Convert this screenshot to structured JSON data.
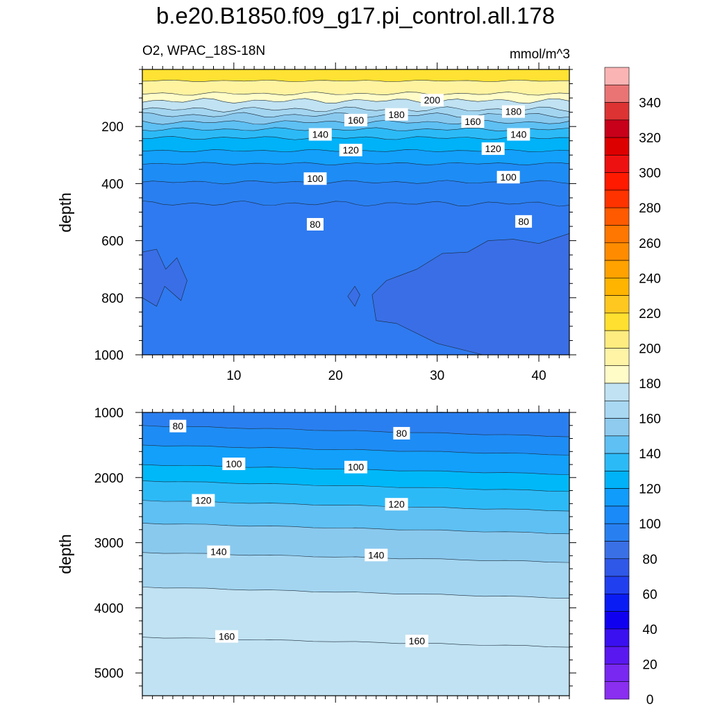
{
  "title": "b.e20.B1850.f09_g17.pi_control.all.178",
  "subtitle": "O2, WPAC_18S-18N",
  "units": "mmol/m^3",
  "chart_data": [
    {
      "type": "heatmap",
      "panel": "upper",
      "variable": "O2",
      "region": "WPAC_18S-18N",
      "ylabel": "depth",
      "xlabel": "",
      "xlim": [
        1,
        43
      ],
      "ylim": [
        1000,
        0
      ],
      "x_ticks": [
        10,
        20,
        30,
        40
      ],
      "y_ticks": [
        200,
        400,
        600,
        800,
        1000
      ],
      "contour_levels": [
        200,
        180,
        160,
        140,
        120,
        100,
        80,
        60
      ],
      "contour_depths": {
        "200": 40,
        "180": 110,
        "160": 150,
        "140": 190,
        "120": 240,
        "100": 330,
        "80": 470
      },
      "contour_labels": [
        {
          "value": 200,
          "x": 29.5,
          "depth": 110
        },
        {
          "value": 180,
          "x": 26,
          "depth": 160
        },
        {
          "value": 180,
          "x": 37.5,
          "depth": 150
        },
        {
          "value": 160,
          "x": 22,
          "depth": 180
        },
        {
          "value": 160,
          "x": 33.5,
          "depth": 185
        },
        {
          "value": 140,
          "x": 18.5,
          "depth": 230
        },
        {
          "value": 140,
          "x": 38,
          "depth": 230
        },
        {
          "value": 120,
          "x": 21.5,
          "depth": 285
        },
        {
          "value": 120,
          "x": 35.5,
          "depth": 280
        },
        {
          "value": 100,
          "x": 18,
          "depth": 385
        },
        {
          "value": 100,
          "x": 37,
          "depth": 380
        },
        {
          "value": 80,
          "x": 18,
          "depth": 545
        },
        {
          "value": 80,
          "x": 38.5,
          "depth": 535
        }
      ]
    },
    {
      "type": "heatmap",
      "panel": "lower",
      "variable": "O2",
      "region": "WPAC_18S-18N",
      "ylabel": "depth",
      "xlabel": "",
      "xlim": [
        1,
        43
      ],
      "ylim": [
        5350,
        1000
      ],
      "x_ticks": [
        10,
        20,
        30,
        40
      ],
      "y_ticks": [
        1000,
        2000,
        3000,
        4000,
        5000
      ],
      "contour_labels": [
        {
          "value": 80,
          "x": 4.5,
          "depth": 1220
        },
        {
          "value": 80,
          "x": 26.5,
          "depth": 1330
        },
        {
          "value": 100,
          "x": 10,
          "depth": 1800
        },
        {
          "value": 100,
          "x": 22,
          "depth": 1850
        },
        {
          "value": 120,
          "x": 7,
          "depth": 2360
        },
        {
          "value": 120,
          "x": 26,
          "depth": 2420
        },
        {
          "value": 140,
          "x": 8.5,
          "depth": 3150
        },
        {
          "value": 140,
          "x": 24,
          "depth": 3200
        },
        {
          "value": 160,
          "x": 9.3,
          "depth": 4450
        },
        {
          "value": 160,
          "x": 28,
          "depth": 4520
        }
      ]
    }
  ],
  "colorbar": {
    "labels": [
      "340",
      "320",
      "300",
      "280",
      "260",
      "240",
      "220",
      "200",
      "180",
      "160",
      "140",
      "120",
      "100",
      "80",
      "60",
      "40",
      "20",
      "0"
    ],
    "colors": [
      "#fbb4b4",
      "#ea7474",
      "#dd3333",
      "#c8001a",
      "#dd0000",
      "#ee1111",
      "#ff1a00",
      "#ff3300",
      "#ff5a00",
      "#ff7700",
      "#ff8c00",
      "#ffa200",
      "#ffb400",
      "#ffc820",
      "#ffe030",
      "#ffec80",
      "#fff4a6",
      "#fffcc8",
      "#c0e2f2",
      "#a8d8f2",
      "#8ecbef",
      "#5ec0f3",
      "#2cbaf7",
      "#00b2f8",
      "#109cfb",
      "#1a8af8",
      "#2880f0",
      "#3a70e6",
      "#2f58e8",
      "#2040f0",
      "#0a1cf4",
      "#1000f0",
      "#3a10f0",
      "#5a18f0",
      "#7828f0",
      "#8a2ef0"
    ]
  }
}
